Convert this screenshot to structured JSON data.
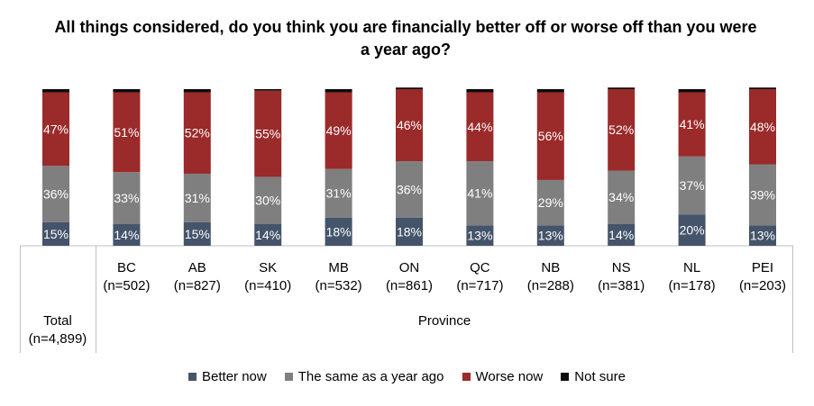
{
  "title": "All things considered, do you think you are financially better off or worse off than you were a year ago?",
  "group_label": "Province",
  "total_label": [
    "Total",
    "(n=4,899)"
  ],
  "colors": {
    "Better now": "#44546a",
    "The same as a year ago": "#7f7f7f",
    "Worse now": "#9b2a2a",
    "Not sure": "#0d0d0d"
  },
  "chart_data": {
    "type": "bar",
    "stacked": true,
    "categories": [
      [
        "Total",
        "(n=4,899)"
      ],
      [
        "BC",
        "(n=502)"
      ],
      [
        "AB",
        "(n=827)"
      ],
      [
        "SK",
        "(n=410)"
      ],
      [
        "MB",
        "(n=532)"
      ],
      [
        "ON",
        "(n=861)"
      ],
      [
        "QC",
        "(n=717)"
      ],
      [
        "NB",
        "(n=288)"
      ],
      [
        "NS",
        "(n=381)"
      ],
      [
        "NL",
        "(n=178)"
      ],
      [
        "PEI",
        "(n=203)"
      ]
    ],
    "series": [
      {
        "name": "Better now",
        "values": [
          15,
          14,
          15,
          14,
          18,
          18,
          13,
          13,
          14,
          20,
          13
        ]
      },
      {
        "name": "The same as a year ago",
        "values": [
          36,
          33,
          31,
          30,
          31,
          36,
          41,
          29,
          34,
          37,
          39
        ]
      },
      {
        "name": "Worse now",
        "values": [
          47,
          51,
          52,
          55,
          49,
          46,
          44,
          56,
          52,
          41,
          48
        ]
      },
      {
        "name": "Not sure",
        "values": [
          2,
          2,
          2,
          1,
          2,
          1,
          2,
          2,
          1,
          2,
          1
        ]
      }
    ],
    "value_suffix": "%",
    "ylim": [
      0,
      100
    ],
    "legend_position": "bottom"
  }
}
